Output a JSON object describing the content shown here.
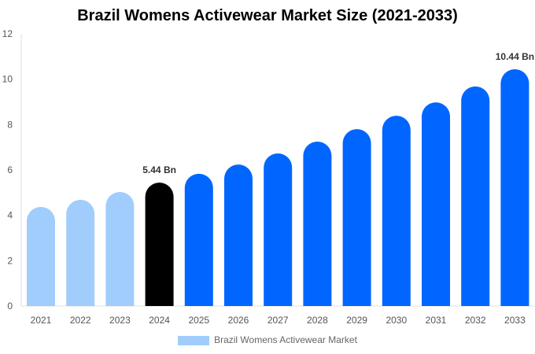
{
  "chart_data": {
    "type": "bar",
    "title": "Brazil Womens Activewear Market Size (2021-2033)",
    "categories": [
      "2021",
      "2022",
      "2023",
      "2024",
      "2025",
      "2026",
      "2027",
      "2028",
      "2029",
      "2030",
      "2031",
      "2032",
      "2033"
    ],
    "series": [
      {
        "name": "Brazil Womens Activewear Market",
        "values": [
          4.37,
          4.68,
          5.03,
          5.44,
          5.83,
          6.24,
          6.73,
          7.25,
          7.8,
          8.39,
          8.98,
          9.68,
          10.44
        ]
      }
    ],
    "data_labels": {
      "3": "5.44 Bn",
      "12": "10.44 Bn"
    },
    "yticks": [
      "0",
      "2",
      "4",
      "6",
      "8",
      "10",
      "12"
    ],
    "ylim": [
      0,
      12
    ],
    "xlabel": "",
    "ylabel": "",
    "grid": false,
    "legend_position": "bottom",
    "colors": {
      "historic": "#a0cdfc",
      "base_year": "#000000",
      "forecast": "#0066ff"
    }
  }
}
